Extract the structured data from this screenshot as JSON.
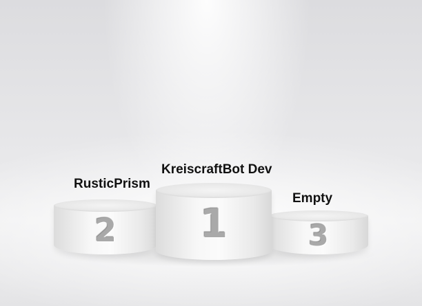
{
  "podium": {
    "first": {
      "rank": "1",
      "name": "KreiscraftBot Dev"
    },
    "second": {
      "rank": "2",
      "name": "RusticPrism"
    },
    "third": {
      "rank": "3",
      "name": "Empty"
    }
  }
}
